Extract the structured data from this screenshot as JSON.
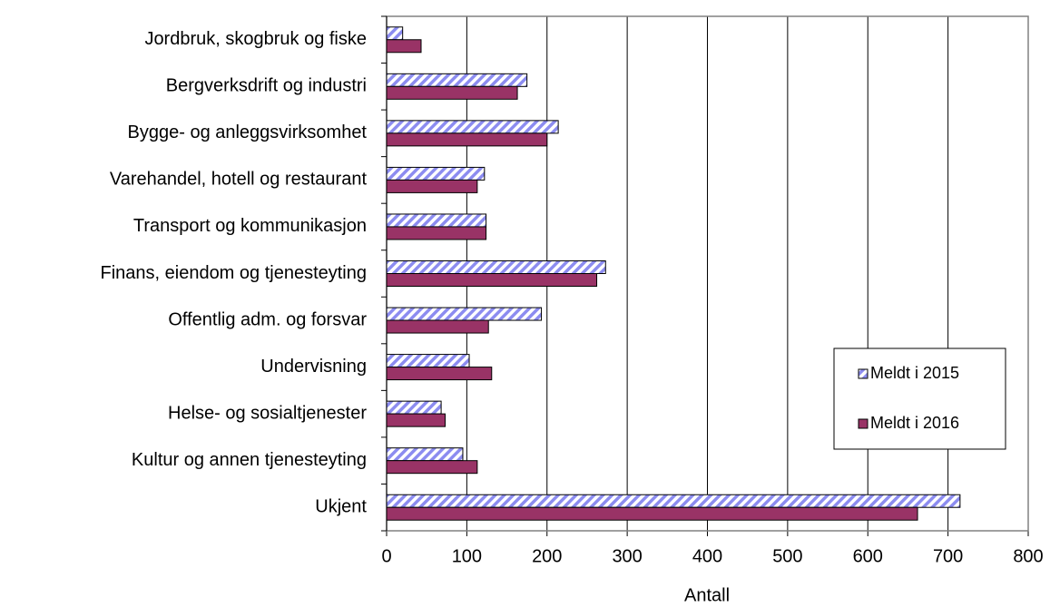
{
  "chart_data": {
    "type": "barh",
    "xlabel": "Antall",
    "categories": [
      "Jordbruk, skogbruk og fiske",
      "Bergverksdrift og industri",
      "Bygge- og anleggsvirksomhet",
      "Varehandel, hotell og restaurant",
      "Transport og kommunikasjon",
      "Finans, eiendom og tjenesteyting",
      "Offentlig adm. og forsvar",
      "Undervisning",
      "Helse- og sosialtjenester",
      "Kultur og annen tjenesteyting",
      "Ukjent"
    ],
    "series": [
      {
        "name": "Meldt i 2015",
        "color": "#8c8cf0",
        "pattern": "hatch",
        "values": [
          20,
          175,
          214,
          122,
          124,
          273,
          193,
          103,
          68,
          95,
          715
        ]
      },
      {
        "name": "Meldt i 2016",
        "color": "#993366",
        "values": [
          43,
          163,
          200,
          113,
          124,
          262,
          127,
          131,
          73,
          113,
          662
        ]
      }
    ],
    "xlim": [
      0,
      800
    ],
    "xticks": [
      0,
      100,
      200,
      300,
      400,
      500,
      600,
      700,
      800
    ],
    "grid": true,
    "legend": "lower right"
  }
}
